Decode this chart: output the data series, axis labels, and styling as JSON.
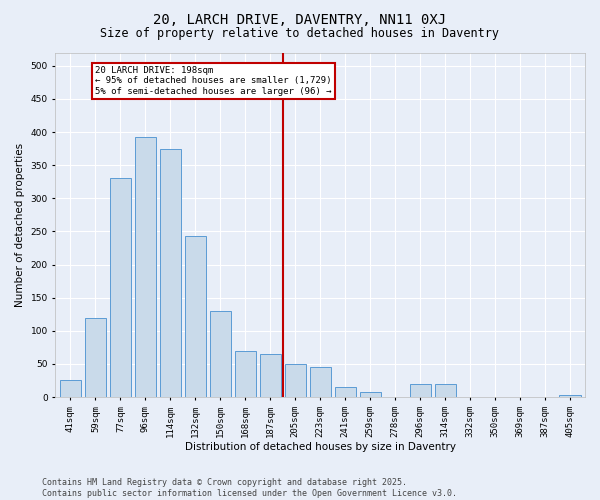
{
  "title": "20, LARCH DRIVE, DAVENTRY, NN11 0XJ",
  "subtitle": "Size of property relative to detached houses in Daventry",
  "xlabel": "Distribution of detached houses by size in Daventry",
  "ylabel": "Number of detached properties",
  "categories": [
    "41sqm",
    "59sqm",
    "77sqm",
    "96sqm",
    "114sqm",
    "132sqm",
    "150sqm",
    "168sqm",
    "187sqm",
    "205sqm",
    "223sqm",
    "241sqm",
    "259sqm",
    "278sqm",
    "296sqm",
    "314sqm",
    "332sqm",
    "350sqm",
    "369sqm",
    "387sqm",
    "405sqm"
  ],
  "values": [
    25,
    120,
    330,
    393,
    375,
    243,
    130,
    70,
    65,
    50,
    45,
    15,
    8,
    0,
    20,
    20,
    0,
    0,
    0,
    0,
    3
  ],
  "bar_color": "#c9daea",
  "bar_edge_color": "#5b9bd5",
  "vline_pos": 8.5,
  "vline_color": "#c00000",
  "annotation_title": "20 LARCH DRIVE: 198sqm",
  "annotation_line1": "← 95% of detached houses are smaller (1,729)",
  "annotation_line2": "5% of semi-detached houses are larger (96) →",
  "annotation_box_color": "#c00000",
  "annotation_bg": "#ffffff",
  "ylim": [
    0,
    520
  ],
  "yticks": [
    0,
    50,
    100,
    150,
    200,
    250,
    300,
    350,
    400,
    450,
    500
  ],
  "footer": "Contains HM Land Registry data © Crown copyright and database right 2025.\nContains public sector information licensed under the Open Government Licence v3.0.",
  "bg_color": "#e8eef8",
  "plot_bg": "#e8eef8",
  "grid_color": "#ffffff",
  "title_fontsize": 10,
  "subtitle_fontsize": 8.5,
  "axis_label_fontsize": 7.5,
  "tick_fontsize": 6.5,
  "annot_fontsize": 6.5,
  "footer_fontsize": 6
}
